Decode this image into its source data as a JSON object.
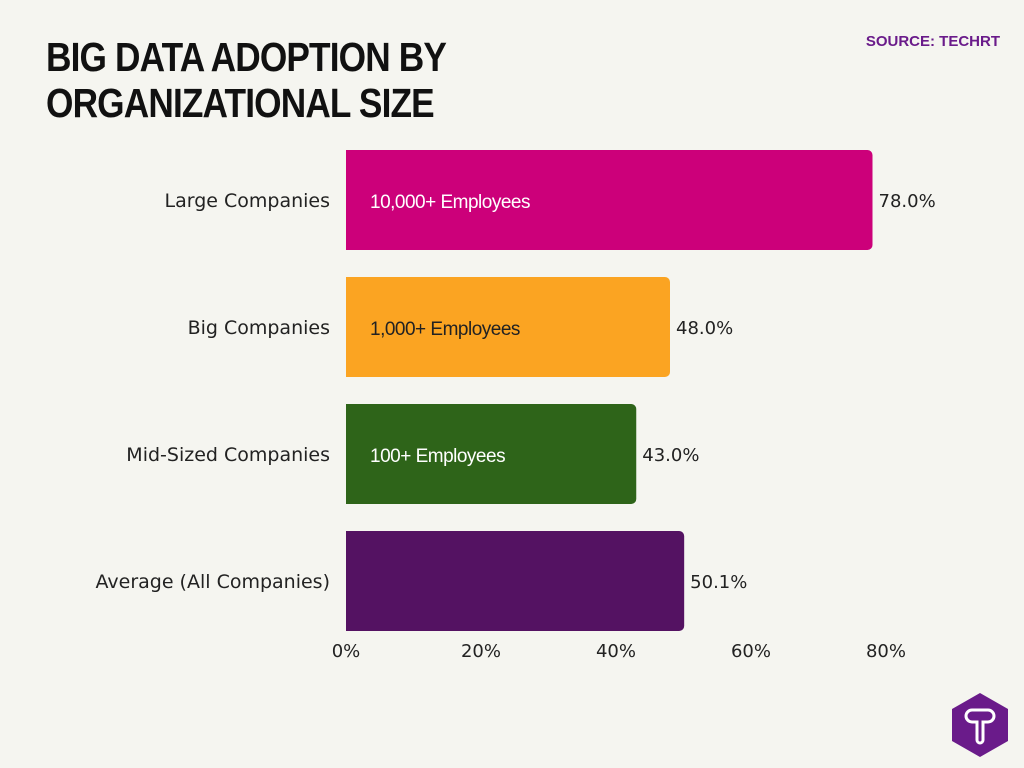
{
  "title": "Big Data Adoption by Organizational Size",
  "source": "SOURCE: TECHRT",
  "logo": {
    "letter": "T",
    "color": "#6a1b8a"
  },
  "chart_data": {
    "type": "bar",
    "orientation": "horizontal",
    "categories": [
      "Large Companies",
      "Big Companies",
      "Mid-Sized Companies",
      "Average (All Companies)"
    ],
    "values": [
      78.0,
      48.0,
      43.0,
      50.1
    ],
    "bar_labels": [
      "10,000+ Employees",
      "1,000+ Employees",
      "100+ Employees",
      ""
    ],
    "data_labels": [
      "78.0%",
      "48.0%",
      "43.0%",
      "50.1%"
    ],
    "colors": [
      "#cc007a",
      "#fba422",
      "#2e6419",
      "#541262"
    ],
    "bar_label_colors": [
      "#ffffff",
      "#222222",
      "#ffffff",
      "#ffffff"
    ],
    "xlim": [
      0,
      80
    ],
    "xticks": [
      "0%",
      "20%",
      "40%",
      "60%",
      "80%"
    ],
    "grid": false
  }
}
